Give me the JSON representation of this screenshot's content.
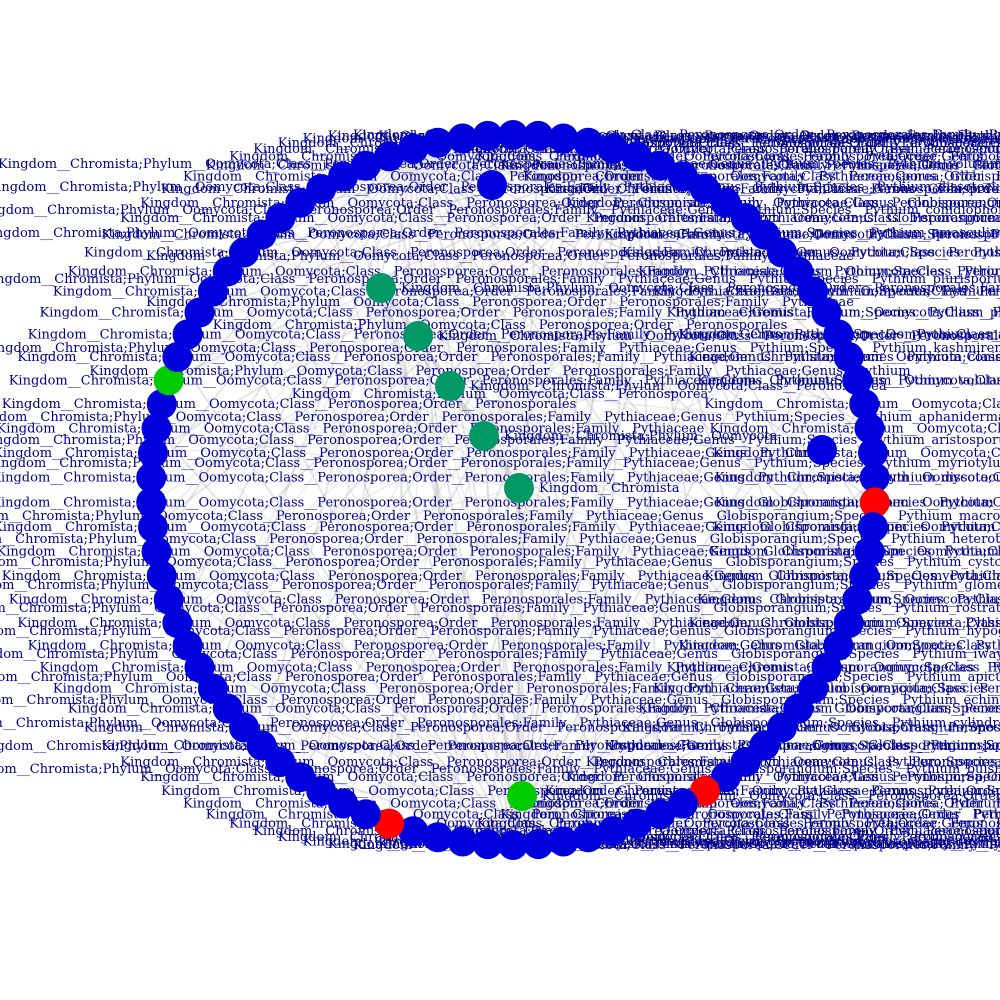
{
  "colors": {
    "blue": "#0000dd",
    "red": "#ff0000",
    "green": "#00cc00",
    "teal": "#009966",
    "edge": "#b4b4b4",
    "label": "#00008b"
  },
  "network": {
    "ring_node_count": 90,
    "red_node_indices": [
      23,
      37,
      50
    ],
    "lime_node_indices": [
      72
    ],
    "ring_labels": [
      "Kingdom__Chromista;Phylum__Oomycota;Class__Peronosporea;Order__Peronosporales;Family__Pythiaceae;Genus__Pythium;Species__Pythium_volutum",
      "Kingdom__Chromista;Phylum__Oomycota;Class__Peronosporea;Order__Peronosporales;Family__Pythiaceae;Genus__Pythium;Species__Pythium_conidiophorum",
      "Kingdom__Chromista;Phylum__Oomycota;Class__Peronosporea;Order__Peronosporales;Family__Pythiaceae;Genus__Pythium;Species__Pythium_amasculinum",
      "Kingdom__Chromista;Phylum__Oomycota;Class__Peronosporea;Order__Peronosporales;Family__Pythiaceae;Genus__Pythium;Species__Pythium_plurisporium",
      "Kingdom__Chromista;Phylum__Oomycota;Class__Peronosporea;Order__Peronosporales;Family__Pythiaceae;Genus__Pythium;Species__Pythium_aphanidermatum",
      "Kingdom__Chromista;Phylum__Oomycota;Class__Peronosporea;Order__Peronosporales;Family__Pythiaceae;Genus__Pythium;Species__Pythium_aristosporum",
      "Kingdom__Chromista;Phylum__Oomycota;Class__Peronosporea;Order__Peronosporales;Family__Pythiaceae;Genus__Pythium;Species__Pythium_kashmirense",
      "Kingdom__Chromista;Phylum__Oomycota;Class__Peronosporea;Order__Peronosporales;Family__Pythiaceae;Genus__Pythium;Species__Pythium_myriotylum",
      "Kingdom__Chromista;Phylum__Oomycota;Class__Peronosporea;Order__Peronosporales;Family__Pythiaceae;Genus__Globisporangium;Species__Pythium_macrosporum",
      "Kingdom__Chromista;Phylum__Oomycota;Class__Peronosporea;Order__Peronosporales;Family__Pythiaceae;Genus__Globisporangium;Species__Pythium_heterothallicum",
      "Kingdom__Chromista;Phylum__Oomycota;Class__Peronosporea;Order__Peronosporales;Family__Pythiaceae;Genus__Globisporangium;Species__Pythium_cystogenes",
      "Kingdom__Chromista;Phylum__Oomycota;Class__Peronosporea;Order__Peronosporales;Family__Pythiaceae;Genus__Globisporangium;Species__Pythium_glomeratum",
      "Kingdom__Chromista;Phylum__Oomycota;Class__Peronosporea;Order__Peronosporales;Family__Pythiaceae;Genus__Globisporangium;Species__Pythium_rostratifingens",
      "Kingdom__Chromista;Phylum__Oomycota;Class__Peronosporea;Order__Peronosporales;Family__Pythiaceae;Genus__Globisporangium;Species__Pythium_hypogynum",
      "Kingdom__Chromista;Phylum__Oomycota;Class__Peronosporea;Order__Peronosporales;Family__Pythiaceae;Genus__Globisporangium;Species__Pythium_iwayamai",
      "Kingdom__Chromista;Phylum__Oomycota;Class__Peronosporea;Order__Peronosporales;Family__Pythiaceae;Genus__Globisporangium;Species__Pythium_apiculatum",
      "Kingdom__Chromista;Phylum__Oomycota;Class__Peronosporea;Order__Peronosporales;Family__Pythiaceae;Genus__Globisporangium;Species__Pythium_echinulatum",
      "Kingdom__Chromista;Phylum__Oomycota;Class__Peronosporea;Order__Peronosporales;Family__Pythiaceae;Genus__Globisporangium;Species__Pythium_cylindrosporum",
      "Kingdom__Chromista;Phylum__Oomycota;Class__Peronosporea;Order__Peronosporales;Family__Pythiaceae;Genus__Globisporangium;Species__Pythium_lucens",
      "Kingdom__Chromista;Phylum__Oomycota;Class__Peronosporea;Order__Peronosporales;Family__Pythiaceae;Genus__Globisporangium;Species__Pythium_buismaniae",
      "Kingdom__Chromista;Phylum__Oomycota;Class__Peronosporea;Order__Peronosporales;Family__Pythiaceae;Genus__Pythium;Species__Pythium_dissotocum",
      "Kingdom__Chromista;Phylum__Oomycota;Class__Peronosporea;Order__Peronosporales;Family__Pythiaceae;Genus__Pythium",
      "Kingdom__Chromista;Phylum__Oomycota;Class__Peronosporea;Order__Peronosporales;Family__Pythiaceae",
      "Kingdom__Chromista;Phylum__Oomycota;Class__Peronosporea;Order__Peronosporales"
    ],
    "center_nodes": [
      {
        "label": "Kingdom__Chromista;Phylum__Oomycota;Class__Peronosporea;Order__Peronosporales;Family__Pythiaceae;Genus__Pythium;Species__Pythium_amasculinum",
        "color": "teal"
      },
      {
        "label": "Kingdom__Chromista;Phylum__Oomycota;Class__Peronosporea;Order__Peronosporales",
        "color": "teal"
      },
      {
        "label": "Kingdom__Chromista;Phylum__Oomycota;Class__Peronosporea",
        "color": "teal"
      },
      {
        "label": "Kingdom__Chromista;Phylum__Oomycota",
        "color": "teal"
      },
      {
        "label": "Kingdom__Chromista",
        "color": "teal"
      },
      {
        "label": "Kingdom__Chromista;Phylum__Oomycota;Class__Peronosporea;Order__Peronosporales;Family__Pythiaceae;Genus__Globisporangium",
        "color": "lime"
      }
    ],
    "center_text_lines": [
      "Kingdom__Chromista;Phylum__Oomycota;Class__Peronosporea;Order__Peronosporales;Family__Pythiaceae;Genus__Pythium;Species__Pythium_volutum",
      "Kingdom__Chromista;Phylum__Oomycota;Class__Peronosporea;Order__Peronosporales;Family__Pythiaceae;Genus__Pythium;Species__Pythium_dissotocum",
      "Kingdom__Chromista;Phylum__Oomycota;Class__Peronosporea;Order__Peronosporales;Family__Pythiaceae;Genus__Pythium;Species__Pythium_conidiophorum",
      "Kingdom__Chromista;Phylum__Oomycota;Class__Peronosporea;Order__Peronosporales;Family__Pythiaceae;Genus__Pythium;Species__Pythium_amasculinum",
      "Kingdom__Chromista;Phylum__Oomycota;Class__Peronosporea;Order__Peronosporales;Family__Pythiaceae",
      "Kingdom__Chromista;Phylum__Oomycota;Class__Peronosporea;Order__Peronosporales;Family__Pythiaceae;Genus__Pythium;Species__Pythium_plurisporium",
      "Kingdom__Chromista;Phylum__Oomycota;Class__Peronosporea;Order__Peronosporales;Family__Pythiaceae",
      "Kingdom__Chromista;Phylum__Oomycota;Class__Peronosporea;Order__Peronosporales",
      "Kingdom__Chromista;Phylum__Oomycota;Class__Peronosporea;Order__Peronosporales;Family__Pythiaceae;Genus__Pythium;Species__Pythium_kashmirense",
      "Kingdom__Chromista;Phylum__Oomycota;Class__Peronosporea;Order__Peronosporales;Family__Pythiaceae;Genus__Pythium",
      "Kingdom__Chromista;Phylum__Oomycota;Class__Peronosporea",
      "Kingdom__Chromista;Phylum__Oomycota;Class__Peronosporea;Order__Peronosporales;Family__Pythiaceae;Genus__Pythium;Species__Pythium_aphanidermatum",
      "Kingdom__Chromista;Phylum__Oomycota;Class__Peronosporea;Order__Peronosporales;Family__Pythiaceae;Genus__Pythium;Species__Pythium_aristosporum",
      "Kingdom__Chromista;Phylum__Oomycota;Class__Peronosporea;Order__Peronosporales;Family__Pythiaceae;Genus__Pythium;Species__Pythium_myriotylum",
      "Kingdom__Chromista;Phylum__Oomycota;Class__Peronosporea;Order__Peronosporales;Family__Pythiaceae;Genus__Globisporangium;Species__Pythium_macrosporum",
      "Kingdom__Chromista;Phylum__Oomycota;Class__Peronosporea;Order__Peronosporales;Family__Pythiaceae;Genus__Globisporangium;Species__Pythium_heterothallicum",
      "Kingdom__Chromista;Phylum__Oomycota;Class__Peronosporea;Order__Peronosporales;Family__Pythiaceae;Genus__Globisporangium;Species__Pythium_cystogenes",
      "Kingdom__Chromista;Phylum__Oomycota;Class__Peronosporea;Order__Peronosporales;Family__Pythiaceae;Genus__Globisporangium;Species__Pythium_glomeratum",
      "Kingdom__Chromista;Phylum__Oomycota;Class__Peronosporea;Order__Peronosporales;Family__Pythiaceae;Genus__Globisporangium;Species__Pythium_rostratifingens",
      "Kingdom__Chromista;Phylum__Oomycota;Class__Peronosporea;Order__Peronosporales;Family__Pythiaceae;Genus__Globisporangium;Species__Pythium_hypogynum",
      "Kingdom__Chromista;Phylum__Oomycota;Class__Peronosporea;Order__Peronosporales;Family__Pythiaceae;Genus__Globisporangium;Species__Pythium_iwayamai",
      "Kingdom__Chromista;Phylum__Oomycota;Class__Peronosporea;Order__Peronosporales;Family__Pythiaceae;Genus__Globisporangium;Species__Pythium_apiculatum",
      "Kingdom__Chromista;Phylum__Oomycota;Class__Peronosporea;Order__Peronosporales;Family__Pythiaceae;Genus__Globisporangium;Species__Pythium_echinulatum",
      "Kingdom__Chromista;Phylum__Oomycota;Class__Peronosporea;Order__Peronosporales;Family__Pythiaceae;Genus__Globisporangium;Species__Pythium_cylindrosporum",
      "Kingdom__Chromista;Phylum__Oomycota;Class__Peronosporea;Order__Peronosporales;Family__Pythiaceae;Genus__Globisporangium;Species__Pythium_lucens",
      "Kingdom__Chromista;Phylum__Oomycota;Class__Peronosporea;Order__Peronosporales;Family__Pythiaceae;Genus__Globisporangium;Species__Pythium_buismaniae"
    ]
  }
}
